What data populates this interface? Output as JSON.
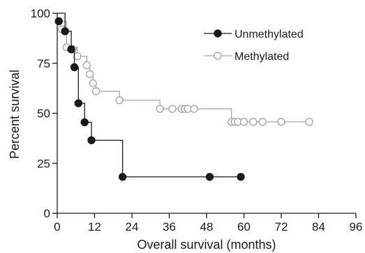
{
  "chart_data": {
    "type": "line",
    "title": "",
    "xlabel": "Overall survival (months)",
    "ylabel": "Percent survival",
    "xlim": [
      0,
      96
    ],
    "ylim": [
      0,
      100
    ],
    "xticks": [
      "0",
      "12",
      "24",
      "36",
      "48",
      "60",
      "72",
      "84",
      "96"
    ],
    "yticks": [
      "0",
      "25",
      "50",
      "75",
      "100"
    ],
    "grid": false,
    "legend_position": "top-right",
    "series": [
      {
        "name": "Unmethylated",
        "color": "#1a1a1a",
        "marker": "filled-circle",
        "steps": [
          [
            0,
            100
          ],
          [
            2.5,
            91
          ],
          [
            4.5,
            82
          ],
          [
            5.5,
            73
          ],
          [
            6.8,
            55
          ],
          [
            8.8,
            45.5
          ],
          [
            11,
            36.5
          ],
          [
            21,
            18.2
          ],
          [
            60,
            18.2
          ]
        ],
        "points": [
          [
            0.5,
            96
          ],
          [
            2.5,
            91
          ],
          [
            4.5,
            82
          ],
          [
            5.5,
            73
          ],
          [
            6.8,
            55
          ],
          [
            8.8,
            45.5
          ],
          [
            11,
            36.5
          ],
          [
            21,
            18.2
          ],
          [
            49,
            18.2
          ],
          [
            59,
            18.2
          ]
        ]
      },
      {
        "name": "Methylated",
        "color": "#a6a6a6",
        "marker": "open-circle",
        "steps": [
          [
            0,
            96
          ],
          [
            3,
            83
          ],
          [
            6.5,
            78.5
          ],
          [
            9.5,
            74
          ],
          [
            10.5,
            69.5
          ],
          [
            11.5,
            65
          ],
          [
            12.5,
            61
          ],
          [
            20,
            56.5
          ],
          [
            33,
            52.2
          ],
          [
            56,
            45.7
          ],
          [
            81,
            45.7
          ]
        ],
        "points": [
          [
            0.5,
            96
          ],
          [
            1.5,
            92
          ],
          [
            3,
            83
          ],
          [
            5,
            82
          ],
          [
            6.5,
            78.5
          ],
          [
            9.5,
            74
          ],
          [
            10.5,
            69.5
          ],
          [
            11.5,
            65
          ],
          [
            12.5,
            61
          ],
          [
            20,
            56.5
          ],
          [
            33,
            52.2
          ],
          [
            37,
            52.2
          ],
          [
            40,
            52.2
          ],
          [
            41,
            52.2
          ],
          [
            42,
            52.2
          ],
          [
            44,
            52.2
          ],
          [
            56,
            45.7
          ],
          [
            57,
            45.7
          ],
          [
            58,
            45.7
          ],
          [
            60,
            45.7
          ],
          [
            63,
            45.7
          ],
          [
            66,
            45.7
          ],
          [
            72,
            45.7
          ],
          [
            81,
            45.7
          ]
        ]
      }
    ]
  }
}
